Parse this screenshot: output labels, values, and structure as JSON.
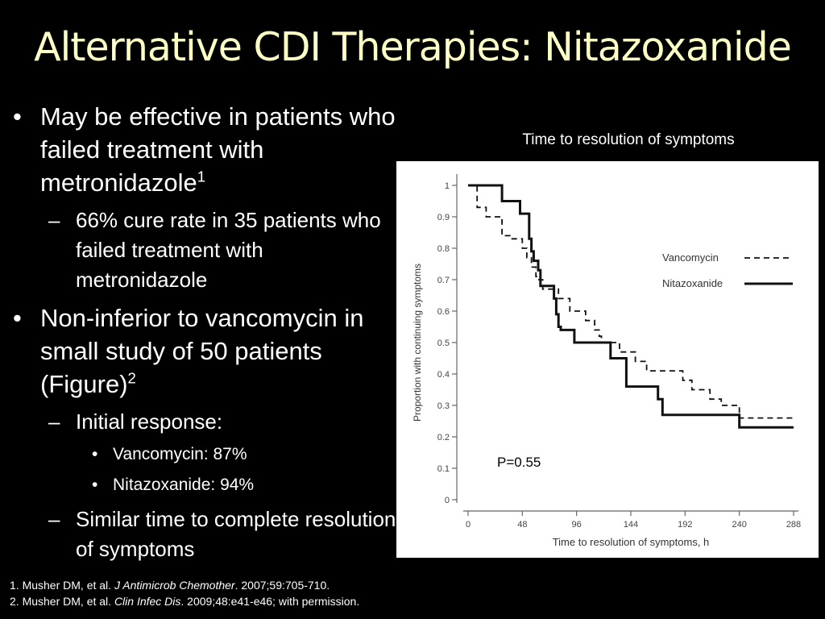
{
  "slide": {
    "title": "Alternative CDI Therapies: Nitazoxanide"
  },
  "bullets": {
    "b1_text": "May be effective in patients who failed treatment with metronidazole",
    "b1_sup": "1",
    "b1_sub1": "66% cure rate in 35 patients who failed treatment with metronidazole",
    "b2_text": "Non-inferior to vancomycin in small study of 50 patients (Figure)",
    "b2_sup": "2",
    "b2_sub1": "Initial response:",
    "b2_sub1_item1": "Vancomycin: 87%",
    "b2_sub1_item2": "Nitazoxanide: 94%",
    "b2_sub2": "Similar time to complete resolution of symptoms",
    "mark_round": "•",
    "mark_dash": "–"
  },
  "references": {
    "r1_prefix": "1. Musher DM, et al. ",
    "r1_journal": "J Antimicrob Chemother",
    "r1_suffix": ". 2007;59:705-710.",
    "r2_prefix": "2. Musher DM, et al. ",
    "r2_journal": "Clin Infec Dis",
    "r2_suffix": ". 2009;48:e41-e46; with permission."
  },
  "chart_caption": "Time to resolution of symptoms",
  "chart_data": {
    "type": "line",
    "step": true,
    "title": "",
    "xlabel": "Time to resolution of symptoms, h",
    "ylabel": "Proportion with continuing symptoms",
    "xlim": [
      0,
      288
    ],
    "ylim": [
      0,
      1
    ],
    "xticks": [
      0,
      48,
      96,
      144,
      192,
      240,
      288
    ],
    "yticks": [
      0,
      0.1,
      0.2,
      0.3,
      0.4,
      0.5,
      0.6,
      0.7,
      0.8,
      0.9,
      1
    ],
    "ytick_labels": [
      "0",
      "0.1",
      "0.2",
      "0.3",
      "0.4",
      "0.5",
      "0.6",
      "0.7",
      "0.8",
      "0.9",
      "1"
    ],
    "legend_position": "upper-right",
    "annotation": "P=0.55",
    "series": [
      {
        "name": "Vancomycin",
        "style": "dashed",
        "points": [
          [
            0,
            1
          ],
          [
            8,
            1
          ],
          [
            8,
            0.93
          ],
          [
            16,
            0.93
          ],
          [
            16,
            0.9
          ],
          [
            30,
            0.9
          ],
          [
            30,
            0.84
          ],
          [
            38,
            0.84
          ],
          [
            38,
            0.83
          ],
          [
            48,
            0.83
          ],
          [
            48,
            0.8
          ],
          [
            52,
            0.8
          ],
          [
            52,
            0.77
          ],
          [
            56,
            0.77
          ],
          [
            56,
            0.74
          ],
          [
            60,
            0.74
          ],
          [
            60,
            0.71
          ],
          [
            62,
            0.71
          ],
          [
            62,
            0.7
          ],
          [
            66,
            0.7
          ],
          [
            66,
            0.67
          ],
          [
            80,
            0.67
          ],
          [
            80,
            0.64
          ],
          [
            90,
            0.64
          ],
          [
            90,
            0.6
          ],
          [
            104,
            0.6
          ],
          [
            104,
            0.57
          ],
          [
            112,
            0.57
          ],
          [
            112,
            0.54
          ],
          [
            116,
            0.54
          ],
          [
            116,
            0.52
          ],
          [
            118,
            0.52
          ],
          [
            118,
            0.5
          ],
          [
            134,
            0.5
          ],
          [
            134,
            0.47
          ],
          [
            148,
            0.47
          ],
          [
            148,
            0.44
          ],
          [
            158,
            0.44
          ],
          [
            158,
            0.41
          ],
          [
            190,
            0.41
          ],
          [
            190,
            0.38
          ],
          [
            198,
            0.38
          ],
          [
            198,
            0.35
          ],
          [
            214,
            0.35
          ],
          [
            214,
            0.32
          ],
          [
            224,
            0.32
          ],
          [
            224,
            0.3
          ],
          [
            240,
            0.3
          ],
          [
            240,
            0.26
          ],
          [
            288,
            0.26
          ]
        ]
      },
      {
        "name": "Nitazoxanide",
        "style": "solid",
        "points": [
          [
            0,
            1
          ],
          [
            30,
            1
          ],
          [
            30,
            0.95
          ],
          [
            46,
            0.95
          ],
          [
            46,
            0.91
          ],
          [
            54,
            0.91
          ],
          [
            54,
            0.83
          ],
          [
            56,
            0.83
          ],
          [
            56,
            0.79
          ],
          [
            58,
            0.79
          ],
          [
            58,
            0.76
          ],
          [
            62,
            0.76
          ],
          [
            62,
            0.73
          ],
          [
            64,
            0.73
          ],
          [
            64,
            0.68
          ],
          [
            76,
            0.68
          ],
          [
            76,
            0.64
          ],
          [
            78,
            0.64
          ],
          [
            78,
            0.59
          ],
          [
            80,
            0.59
          ],
          [
            80,
            0.55
          ],
          [
            82,
            0.55
          ],
          [
            82,
            0.54
          ],
          [
            94,
            0.54
          ],
          [
            94,
            0.5
          ],
          [
            126,
            0.5
          ],
          [
            126,
            0.45
          ],
          [
            140,
            0.45
          ],
          [
            140,
            0.36
          ],
          [
            168,
            0.36
          ],
          [
            168,
            0.32
          ],
          [
            172,
            0.32
          ],
          [
            172,
            0.27
          ],
          [
            240,
            0.27
          ],
          [
            240,
            0.23
          ],
          [
            288,
            0.23
          ]
        ]
      }
    ]
  }
}
